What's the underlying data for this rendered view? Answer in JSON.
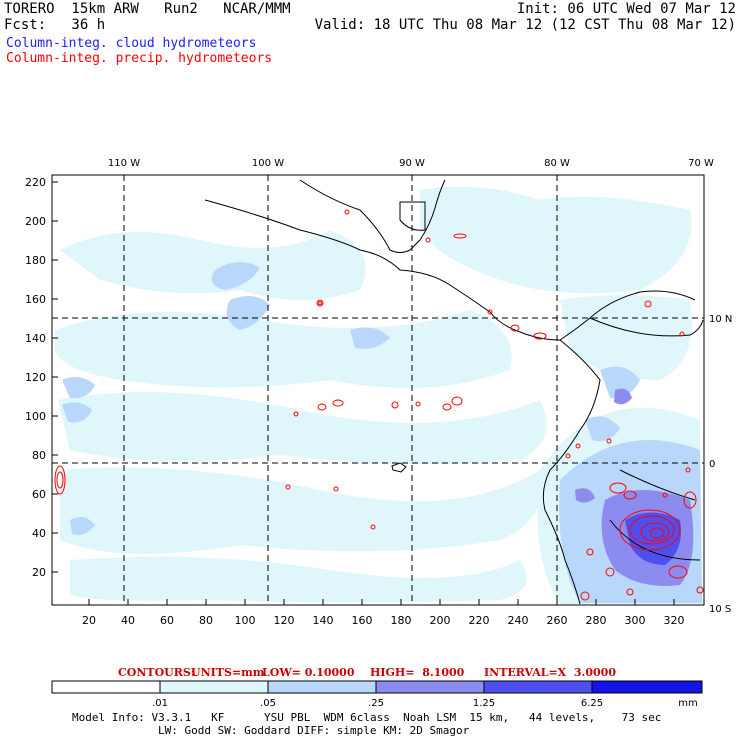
{
  "header": {
    "model": "TORERO  15km ARW   Run2   NCAR/MMM",
    "init": "Init: 06 UTC Wed 07 Mar 12",
    "fcst": "Fcst:   36 h",
    "valid": "Valid: 18 UTC Thu 08 Mar 12 (12 CST Thu 08 Mar 12)",
    "field1": "Column-integ. cloud hydrometeors",
    "field2": "Column-integ. precip. hydrometeors",
    "field1_color": "#2020ff",
    "field2_color": "#ff0000"
  },
  "map": {
    "lon_labels": [
      "110 W",
      "100 W",
      "90 W",
      "80 W",
      "70 W"
    ],
    "lat_labels": [
      "10 N",
      "0",
      "10 S"
    ],
    "y_ticks": [
      "220",
      "200",
      "180",
      "160",
      "140",
      "120",
      "100",
      "80",
      "60",
      "40",
      "20"
    ],
    "x_ticks": [
      "20",
      "40",
      "60",
      "80",
      "100",
      "120",
      "140",
      "160",
      "180",
      "200",
      "220",
      "240",
      "260",
      "280",
      "300",
      "320"
    ]
  },
  "contour_info": {
    "label": "CONTOURS:",
    "units": "UNITS=mm",
    "low": "LOW= 0.10000",
    "high": "HIGH=  8.1000",
    "interval": "INTERVAL=X  3.0000"
  },
  "colorbar": {
    "units": "mm",
    "labels": [
      ".01",
      ".05",
      ".25",
      "1.25",
      "6.25"
    ],
    "colors": [
      "#ffffff",
      "#dff7fb",
      "#b8d7fb",
      "#8c8cf0",
      "#4f4ff0",
      "#1414e8"
    ]
  },
  "model_info": {
    "line1": "Model Info: V3.3.1   KF      YSU PBL  WDM 6class  Noah LSM  15 km,   44 levels,    73 sec",
    "line2": "LW: Godd SW: Goddard DIFF: simple KM: 2D Smagor"
  }
}
